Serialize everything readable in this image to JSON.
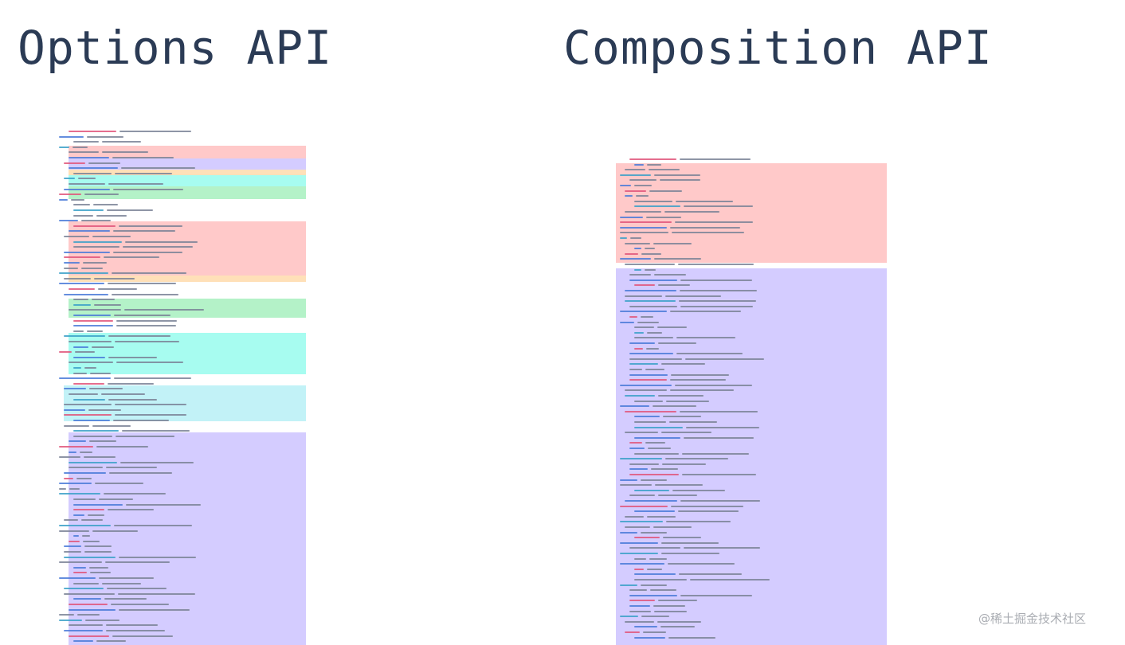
{
  "titles": {
    "options": "Options API",
    "composition": "Composition API"
  },
  "palette": {
    "red": "#ffc9c9",
    "purple": "#d4ccff",
    "orange": "#ffe0b8",
    "teal": "#a7fcf0",
    "green": "#b4f2c8",
    "cyan": "#c2f2f7"
  },
  "watermark": "@稀土掘金技术社区"
}
